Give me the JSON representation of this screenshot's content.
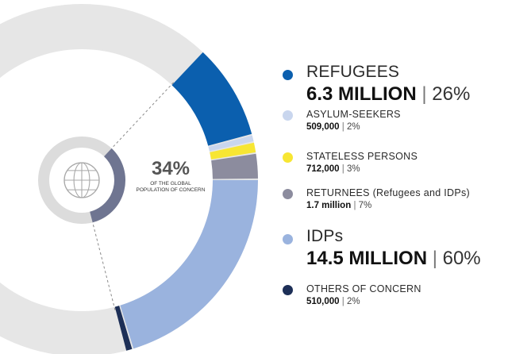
{
  "chart_data": {
    "type": "pie",
    "title": "",
    "center": {
      "percent": "34%",
      "caption": "OF THE GLOBAL POPULATION OF CONCERN"
    },
    "categories": [
      "REFUGEES",
      "ASYLUM-SEEKERS",
      "STATELESS PERSONS",
      "RETURNEES (Refugees and IDPs)",
      "IDPs",
      "OTHERS OF CONCERN"
    ],
    "values": [
      26,
      2,
      3,
      7,
      60,
      2
    ],
    "value_labels": [
      "6.3 MILLION",
      "509,000",
      "712,000",
      "1.7 million",
      "14.5 MILLION",
      "510,000"
    ],
    "percent_labels": [
      "26%",
      "2%",
      "3%",
      "7%",
      "60%",
      "2%"
    ],
    "colors": [
      "#0b5fae",
      "#c9d6ee",
      "#f7e633",
      "#8c8c9e",
      "#9ab3de",
      "#1d2f57"
    ],
    "global_share_percent": 34,
    "background_ring_color": "#e6e6e6",
    "inner_ring_color": "#6f7591",
    "legend_position": "right"
  },
  "legend": [
    {
      "name": "REFUGEES",
      "value": "6.3 MILLION",
      "pct": "26%",
      "color": "#0b5fae",
      "size": "major"
    },
    {
      "name": "ASYLUM-SEEKERS",
      "value": "509,000",
      "pct": "2%",
      "color": "#c9d6ee",
      "size": "minor"
    },
    {
      "name": "STATELESS PERSONS",
      "value": "712,000",
      "pct": "3%",
      "color": "#f7e633",
      "size": "minor"
    },
    {
      "name": "RETURNEES (Refugees and IDPs)",
      "value": "1.7 million",
      "pct": "7%",
      "color": "#8c8c9e",
      "size": "minor"
    },
    {
      "name": "IDPs",
      "value": "14.5 MILLION",
      "pct": "60%",
      "color": "#9ab3de",
      "size": "major"
    },
    {
      "name": "OTHERS OF CONCERN",
      "value": "510,000",
      "pct": "2%",
      "color": "#1d2f57",
      "size": "minor"
    }
  ],
  "globe_icon": "globe-icon"
}
